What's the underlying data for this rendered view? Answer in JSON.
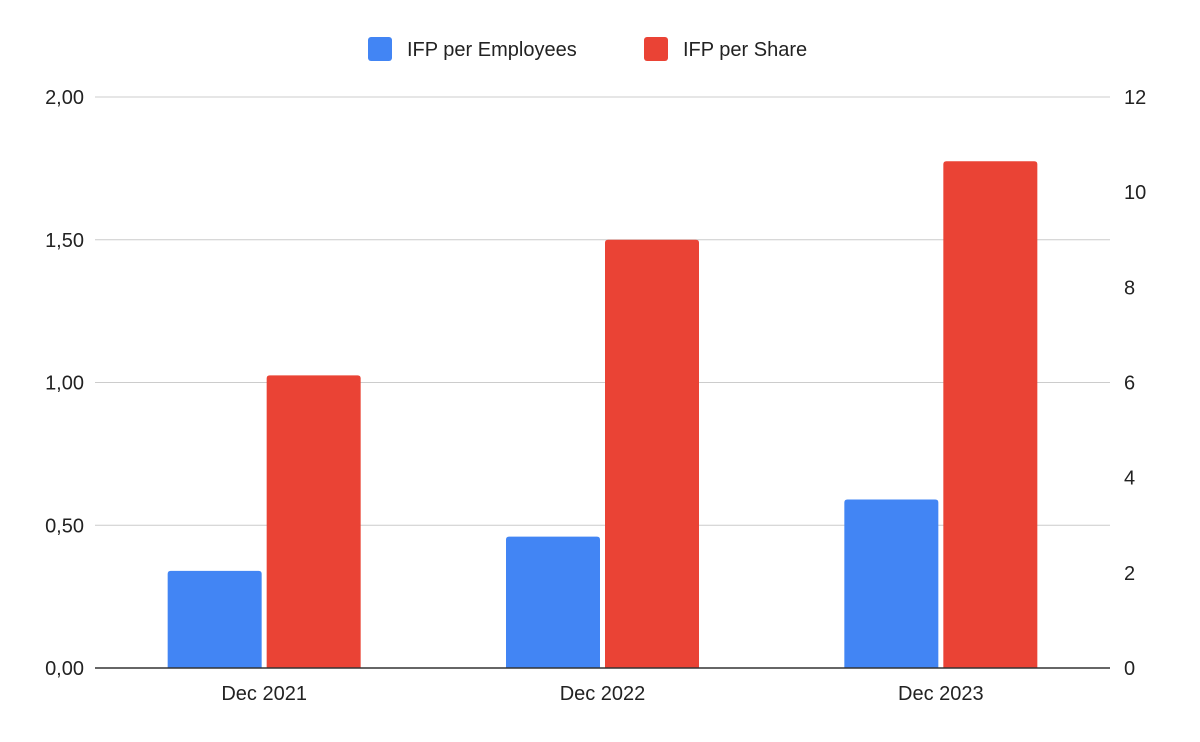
{
  "chart_data": {
    "type": "bar",
    "categories": [
      "Dec 2021",
      "Dec 2022",
      "Dec 2023"
    ],
    "series": [
      {
        "name": "IFP per Employees",
        "values": [
          0.34,
          0.46,
          0.59
        ],
        "axis": "left",
        "color": "#4285F4"
      },
      {
        "name": "IFP per Share",
        "values": [
          6.15,
          9.0,
          10.65
        ],
        "axis": "right",
        "color": "#EA4335"
      }
    ],
    "y_left": {
      "ylim": [
        0,
        2
      ],
      "ticks": [
        0,
        0.5,
        1,
        1.5,
        2
      ],
      "tick_labels": [
        "0,00",
        "0,50",
        "1,00",
        "1,50",
        "2,00"
      ]
    },
    "y_right": {
      "ylim": [
        0,
        12
      ],
      "ticks": [
        0,
        2,
        4,
        6,
        8,
        10,
        12
      ],
      "tick_labels": [
        "0",
        "2",
        "4",
        "6",
        "8",
        "10",
        "12"
      ]
    },
    "grid": true,
    "legend": "top"
  }
}
